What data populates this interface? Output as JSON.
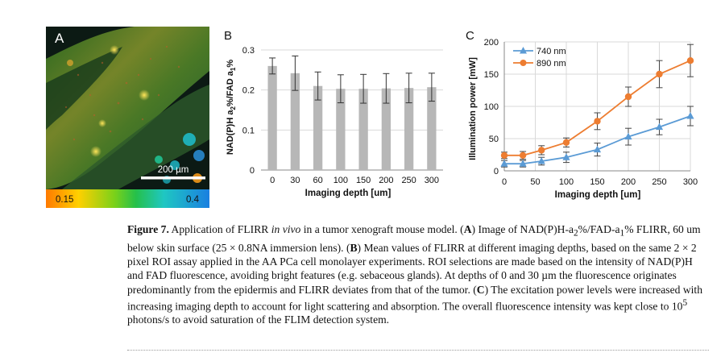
{
  "panel_a": {
    "letter": "A",
    "scalebar_label": "200 µm",
    "colorbar_min": "0.15",
    "colorbar_max": "0.4"
  },
  "chart_data": [
    {
      "panel": "B",
      "type": "bar",
      "xlabel": "Imaging depth [um]",
      "ylabel_parts": [
        "NAD(P)H a",
        "2",
        "%/FAD a",
        "1",
        "%"
      ],
      "categories": [
        "0",
        "30",
        "60",
        "100",
        "150",
        "200",
        "250",
        "300"
      ],
      "values": [
        0.26,
        0.242,
        0.21,
        0.203,
        0.203,
        0.204,
        0.205,
        0.207
      ],
      "errors": [
        0.02,
        0.043,
        0.035,
        0.035,
        0.036,
        0.037,
        0.037,
        0.035
      ],
      "ylim": [
        0,
        0.3
      ],
      "yticks": [
        "0",
        "0.1",
        "0.2",
        "0.3"
      ],
      "grid": true,
      "bar_color": "#b7b7b7"
    },
    {
      "panel": "C",
      "type": "line",
      "xlabel": "Imaging depth [um]",
      "ylabel": "Illumination power [mW]",
      "x": [
        0,
        30,
        60,
        100,
        150,
        200,
        250,
        300
      ],
      "xticks": [
        "0",
        "50",
        "100",
        "150",
        "200",
        "250",
        "300"
      ],
      "yticks": [
        "0",
        "50",
        "100",
        "150",
        "200"
      ],
      "xlim": [
        0,
        300
      ],
      "ylim": [
        0,
        200
      ],
      "grid": true,
      "legend_position": "top-left",
      "series": [
        {
          "name": "740 nm",
          "values": [
            11,
            11,
            15,
            21,
            33,
            53,
            68,
            85
          ],
          "errors": [
            5,
            5,
            6,
            8,
            10,
            13,
            12,
            15
          ],
          "color": "#5b9bd5",
          "marker": "triangle"
        },
        {
          "name": "890 nm",
          "values": [
            24,
            24,
            32,
            44,
            77,
            115,
            150,
            171
          ],
          "errors": [
            5,
            6,
            7,
            7,
            13,
            15,
            21,
            25
          ],
          "color": "#ed7d31",
          "marker": "circle"
        }
      ]
    }
  ],
  "caption": {
    "figure_label": "Figure 7.",
    "s1": " Application of FLIRR ",
    "s1_italic": "in vivo",
    "s2": " in a tumor xenograft mouse model. (",
    "a": "A",
    "s3": ") Image of NAD(P)H-a",
    "sub2": "2",
    "s4": "%/FAD-a",
    "sub1": "1",
    "s5": "% FLIRR, 60 um below skin surface (25 × 0.8NA immersion lens). (",
    "b": "B",
    "s6": ") Mean values of FLIRR at different imaging depths, based on the same 2 × 2 pixel ROI assay applied in the AA PCa cell monolayer experiments. ROI selections are made based on the intensity of NAD(P)H and FAD fluorescence, avoiding bright features (e.g. sebaceous glands). At depths of 0 and 30 µm the fluorescence originates predominantly from the epidermis and FLIRR deviates from that of the tumor. (",
    "c": "C",
    "s7": ") The excitation power levels were increased with increasing imaging depth to account for light scattering and absorption. The overall fluorescence intensity was kept close to 10",
    "sup5": "5",
    "s8": " photons/s to avoid saturation of the FLIM detection system."
  }
}
